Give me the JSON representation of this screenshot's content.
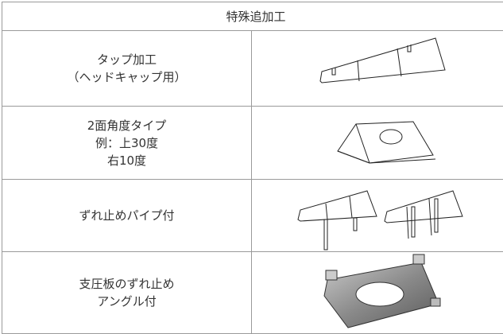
{
  "table": {
    "title": "特殊追加工",
    "rows": [
      {
        "lines": [
          "タップ加工",
          "（ヘッドキャップ用）"
        ]
      },
      {
        "lines": [
          "2面角度タイプ",
          "例：上30度",
          "右10度"
        ]
      },
      {
        "lines": [
          "ずれ止めパイプ付"
        ]
      },
      {
        "lines": [
          "支圧板のずれ止め",
          "アングル付"
        ]
      }
    ]
  }
}
